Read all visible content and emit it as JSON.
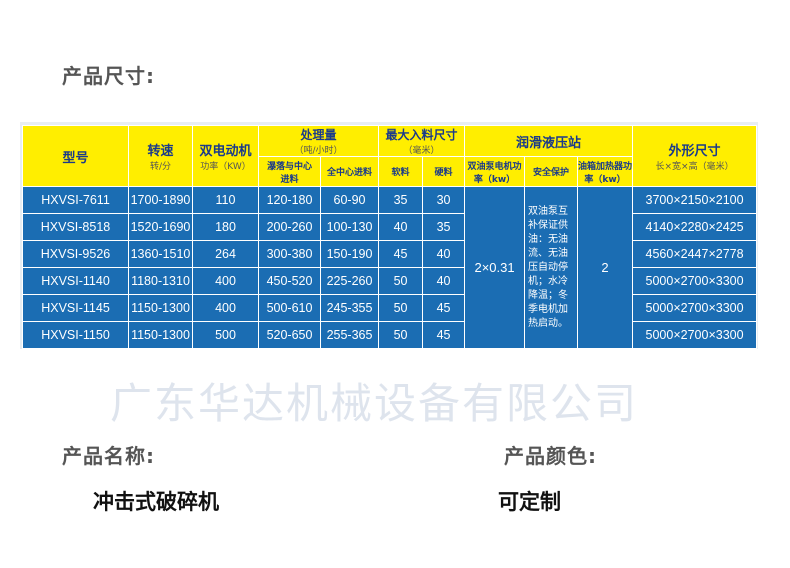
{
  "labels": {
    "size": "产品尺寸:",
    "name": "产品名称:",
    "color": "产品颜色:"
  },
  "values": {
    "name": "冲击式破碎机",
    "color": "可定制"
  },
  "table": {
    "headers": {
      "model": "型号",
      "speed": "转速",
      "speed_unit": "转/分",
      "motor": "双电动机",
      "motor_unit": "功率（KW）",
      "capacity": "处理量",
      "capacity_unit": "（吨/小时）",
      "cap_a": "瀑落与中心进料",
      "cap_b": "全中心进料",
      "feed": "最大入料尺寸",
      "feed_unit": "（毫米）",
      "soft": "软料",
      "hard": "硬料",
      "lube": "润滑液压站",
      "pump": "双油泵电机功率（kw）",
      "safety": "安全保护",
      "heater": "油箱加热器功率（kw）",
      "dims": "外形尺寸",
      "dims_unit": "长×宽×高（毫米）"
    },
    "rows": [
      [
        "HXVSI-7611",
        "1700-1890",
        "110",
        "120-180",
        "60-90",
        "35",
        "30",
        "3700×2150×2100"
      ],
      [
        "HXVSI-8518",
        "1520-1690",
        "180",
        "200-260",
        "100-130",
        "40",
        "35",
        "4140×2280×2425"
      ],
      [
        "HXVSI-9526",
        "1360-1510",
        "264",
        "300-380",
        "150-190",
        "45",
        "40",
        "4560×2447×2778"
      ],
      [
        "HXVSI-1140",
        "1180-1310",
        "400",
        "450-520",
        "225-260",
        "50",
        "40",
        "5000×2700×3300"
      ],
      [
        "HXVSI-1145",
        "1150-1300",
        "400",
        "500-610",
        "245-355",
        "50",
        "45",
        "5000×2700×3300"
      ],
      [
        "HXVSI-1150",
        "1150-1300",
        "500",
        "520-650",
        "255-365",
        "50",
        "45",
        "5000×2700×3300"
      ]
    ],
    "pump_value": "2×0.31",
    "safety_text": "双油泵互补保证供油：无油流、无油压自动停机；水冷降温；冬季电机加热启动。",
    "heater_value": "2"
  },
  "watermark": "广东华达机械设备有限公司"
}
